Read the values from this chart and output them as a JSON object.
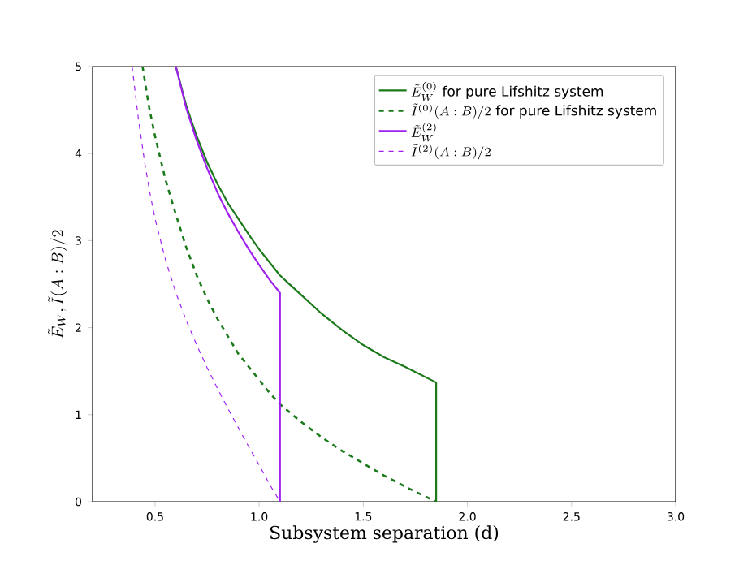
{
  "chart_data": {
    "type": "line",
    "xlabel": "Subsystem separation (d)",
    "ylabel": "\\tilde{E}_W, \\tilde{I}(A:B)/2",
    "xlim": [
      0.2,
      3.0
    ],
    "ylim": [
      0,
      5
    ],
    "xticks": [
      0.5,
      {
        "value": 1.0,
        "label": "1.0"
      },
      1.5,
      {
        "value": 2.0,
        "label": "2.0"
      },
      2.5,
      {
        "value": 3.0,
        "label": "3.0"
      }
    ],
    "yticks": [
      0,
      1,
      2,
      3,
      4,
      5
    ],
    "grid": false,
    "legend": "top right",
    "series": [
      {
        "name": "\\tilde{E}_W^{(0)}\\text{ for pure Lifshitz system}",
        "color": "#1a7a1a",
        "line_style": "solid",
        "x": [
          0.6,
          0.65,
          0.7,
          0.75,
          0.8,
          0.85,
          0.9,
          0.95,
          1.0,
          1.05,
          1.1,
          1.15,
          1.2,
          1.3,
          1.4,
          1.5,
          1.6,
          1.7,
          1.85,
          1.85
        ],
        "values": [
          5,
          4.55,
          4.2,
          3.9,
          3.65,
          3.43,
          3.25,
          3.07,
          2.9,
          2.75,
          2.6,
          2.49,
          2.38,
          2.16,
          1.97,
          1.8,
          1.66,
          1.55,
          1.37,
          0
        ]
      },
      {
        "name": "\\tilde{I}^{(0)}(A:B)/2\\text{ for pure Lifshitz system}",
        "color": "#1a7a1a",
        "line_style": "dashed",
        "x": [
          0.44,
          0.47,
          0.5,
          0.55,
          0.6,
          0.65,
          0.7,
          0.75,
          0.8,
          0.85,
          0.9,
          0.95,
          1.0,
          1.05,
          1.1,
          1.2,
          1.3,
          1.4,
          1.5,
          1.6,
          1.72,
          1.85
        ],
        "values": [
          5,
          4.55,
          4.2,
          3.7,
          3.3,
          2.92,
          2.6,
          2.33,
          2.1,
          1.9,
          1.7,
          1.55,
          1.4,
          1.25,
          1.12,
          0.92,
          0.74,
          0.58,
          0.44,
          0.3,
          0.15,
          0
        ]
      },
      {
        "name": "\\tilde{E}_W^{(2)}",
        "color": "#a020f0",
        "line_style": "solid",
        "x": [
          0.6,
          0.65,
          0.7,
          0.75,
          0.8,
          0.85,
          0.9,
          0.95,
          1.0,
          1.05,
          1.1,
          1.1
        ],
        "values": [
          5,
          4.52,
          4.15,
          3.83,
          3.55,
          3.31,
          3.1,
          2.9,
          2.72,
          2.55,
          2.4,
          0
        ]
      },
      {
        "name": "\\tilde{I}^{(2)}(A:B)/2",
        "color": "#a020f0",
        "line_style": "dashed",
        "x": [
          0.39,
          0.42,
          0.45,
          0.475,
          0.5,
          0.55,
          0.6,
          0.65,
          0.7,
          0.75,
          0.8,
          0.85,
          0.9,
          0.95,
          1.0,
          1.05,
          1.1
        ],
        "values": [
          5,
          4.4,
          3.9,
          3.55,
          3.25,
          2.78,
          2.4,
          2.08,
          1.8,
          1.54,
          1.3,
          1.07,
          0.85,
          0.63,
          0.42,
          0.2,
          0
        ]
      }
    ]
  }
}
